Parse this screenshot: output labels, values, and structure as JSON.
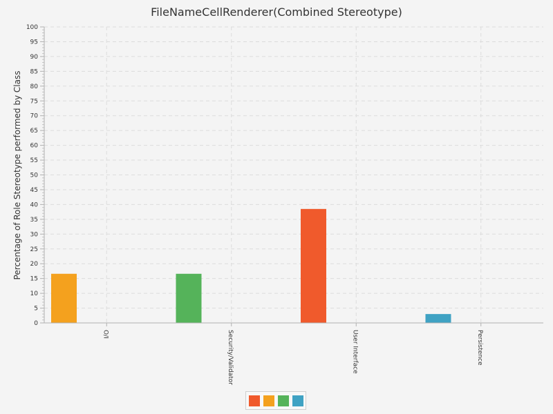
{
  "chart_data": {
    "type": "bar",
    "title": "FileNameCellRenderer(Combined Stereotype)",
    "xlabel": "",
    "ylabel": "Percentage of Role Stereotype performed by Class",
    "ylim": [
      0,
      100
    ],
    "ytick_step": 5,
    "grid": true,
    "legend_position": "bottom",
    "categories": [
      "O/I",
      "Security/Validator",
      "User Interface",
      "Persistence"
    ],
    "series": [
      {
        "color": "#f05a2c",
        "values": [
          0,
          0,
          38.5,
          0
        ]
      },
      {
        "color": "#f4a11e",
        "values": [
          16.6,
          0,
          0,
          0
        ]
      },
      {
        "color": "#55b35a",
        "values": [
          0,
          16.6,
          0,
          0
        ]
      },
      {
        "color": "#3fa2c3",
        "values": [
          0,
          0,
          0,
          3.0
        ]
      }
    ],
    "bar_colors": [
      "#f4a11e",
      "#55b35a",
      "#f05a2c",
      "#3fa2c3"
    ],
    "legend_colors": [
      "#f05a2c",
      "#f4a11e",
      "#55b35a",
      "#3fa2c3"
    ]
  }
}
